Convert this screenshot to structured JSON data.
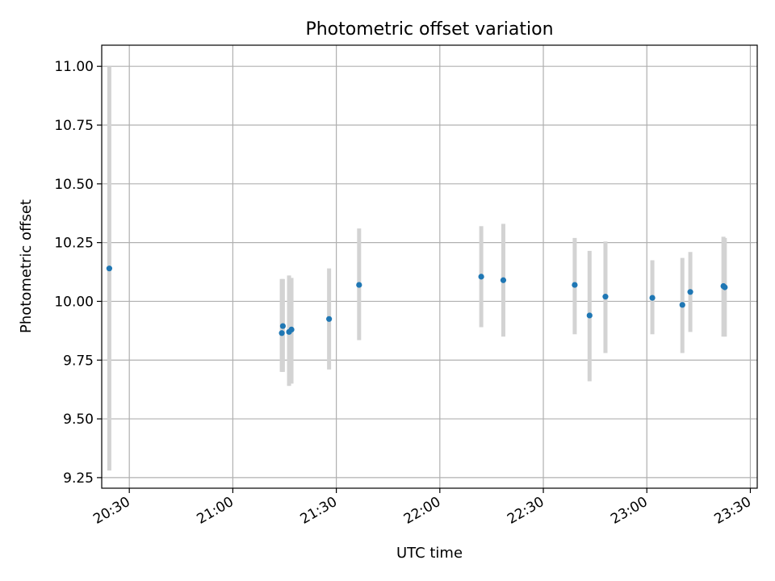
{
  "chart_data": {
    "type": "scatter",
    "title": "Photometric offset variation",
    "xlabel": "UTC time",
    "ylabel": "Photometric offset",
    "xlim": [
      "20:22",
      "23:32"
    ],
    "ylim": [
      9.205,
      11.09
    ],
    "x_ticks": [
      "20:30",
      "21:00",
      "21:30",
      "22:00",
      "22:30",
      "23:00",
      "23:30"
    ],
    "y_ticks": [
      "9.25",
      "9.50",
      "9.75",
      "10.00",
      "10.25",
      "10.50",
      "10.75",
      "11.00"
    ],
    "grid": true,
    "colors": {
      "points": "#1f77b4",
      "error_bars": "#d3d3d3"
    },
    "series": [
      {
        "points": [
          {
            "x": "20:24.2",
            "y": 10.14,
            "err_low": 9.28,
            "err_high": 11.0
          },
          {
            "x": "21:14.2",
            "y": 9.865,
            "err_low": 9.7,
            "err_high": 10.095
          },
          {
            "x": "21:14.5",
            "y": 9.895,
            "err_low": 9.7,
            "err_high": 10.095
          },
          {
            "x": "21:16.3",
            "y": 9.87,
            "err_low": 9.64,
            "err_high": 10.11
          },
          {
            "x": "21:17.0",
            "y": 9.88,
            "err_low": 9.65,
            "err_high": 10.1
          },
          {
            "x": "21:27.9",
            "y": 9.925,
            "err_low": 9.71,
            "err_high": 10.14
          },
          {
            "x": "21:36.6",
            "y": 10.07,
            "err_low": 9.835,
            "err_high": 10.31
          },
          {
            "x": "22:12.0",
            "y": 10.105,
            "err_low": 9.89,
            "err_high": 10.32
          },
          {
            "x": "22:18.4",
            "y": 10.09,
            "err_low": 9.85,
            "err_high": 10.33
          },
          {
            "x": "22:39.1",
            "y": 10.07,
            "err_low": 9.86,
            "err_high": 10.27
          },
          {
            "x": "22:43.4",
            "y": 9.94,
            "err_low": 9.66,
            "err_high": 10.215
          },
          {
            "x": "22:48.0",
            "y": 10.02,
            "err_low": 9.78,
            "err_high": 10.255
          },
          {
            "x": "23:01.6",
            "y": 10.015,
            "err_low": 9.86,
            "err_high": 10.175
          },
          {
            "x": "23:10.3",
            "y": 9.985,
            "err_low": 9.78,
            "err_high": 10.185
          },
          {
            "x": "23:12.6",
            "y": 10.04,
            "err_low": 9.87,
            "err_high": 10.21
          },
          {
            "x": "23:22.2",
            "y": 10.065,
            "err_low": 9.85,
            "err_high": 10.275
          },
          {
            "x": "23:22.6",
            "y": 10.06,
            "err_low": 9.85,
            "err_high": 10.27
          }
        ]
      }
    ]
  }
}
